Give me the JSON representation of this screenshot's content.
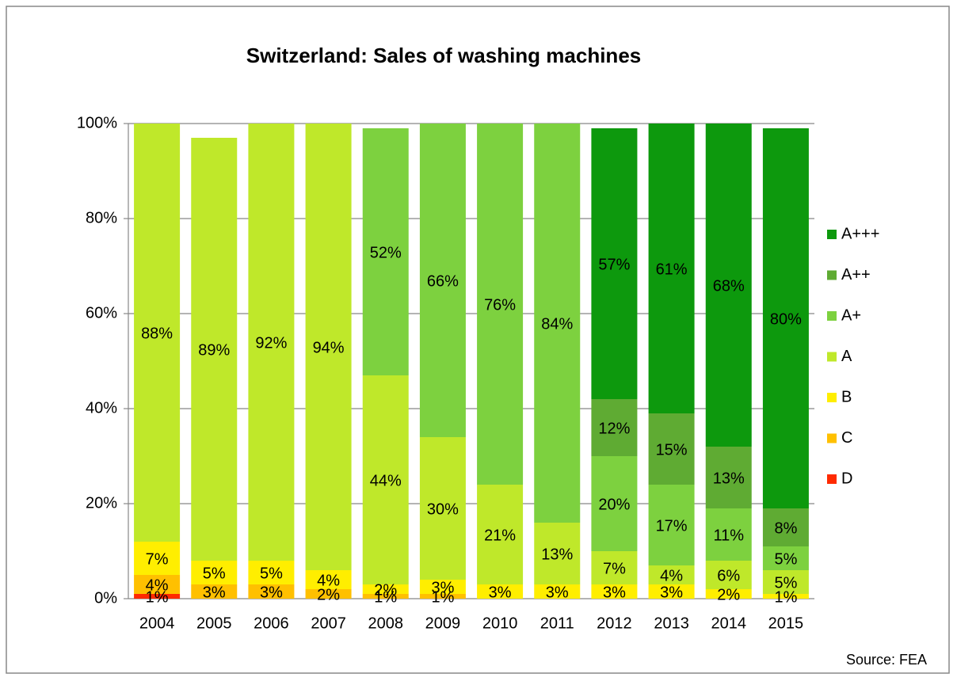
{
  "chart_data": {
    "type": "stacked_bar",
    "title": "Switzerland: Sales of washing machines",
    "source": "Source: FEA",
    "categories": [
      "2004",
      "2005",
      "2006",
      "2007",
      "2008",
      "2009",
      "2010",
      "2011",
      "2012",
      "2013",
      "2014",
      "2015"
    ],
    "ylim": [
      0,
      100
    ],
    "yticks": [
      {
        "value": 0,
        "label": "0%"
      },
      {
        "value": 20,
        "label": "20%"
      },
      {
        "value": 40,
        "label": "40%"
      },
      {
        "value": 60,
        "label": "60%"
      },
      {
        "value": 80,
        "label": "80%"
      },
      {
        "value": 100,
        "label": "100%"
      }
    ],
    "grid": true,
    "legend": "right",
    "series": [
      {
        "name": "D",
        "color": "#ff2a00",
        "values": [
          1,
          null,
          null,
          null,
          null,
          null,
          null,
          null,
          null,
          null,
          null,
          null
        ],
        "value_labels": [
          "1%",
          null,
          null,
          null,
          null,
          null,
          null,
          null,
          null,
          null,
          null,
          null
        ]
      },
      {
        "name": "C",
        "color": "#ffc000",
        "values": [
          4,
          3,
          3,
          2,
          1,
          1,
          null,
          null,
          null,
          null,
          null,
          null
        ],
        "value_labels": [
          "4%",
          "3%",
          "3%",
          "2%",
          "1%",
          "1%",
          null,
          null,
          null,
          null,
          null,
          null
        ]
      },
      {
        "name": "B",
        "color": "#ffee00",
        "values": [
          7,
          5,
          5,
          4,
          2,
          3,
          3,
          3,
          3,
          3,
          2,
          1
        ],
        "value_labels": [
          "7%",
          "5%",
          "5%",
          "4%",
          "2%",
          "3%",
          "3%",
          "3%",
          "3%",
          "3%",
          "2%",
          "1%"
        ]
      },
      {
        "name": "A",
        "color": "#bfe82a",
        "values": [
          88,
          89,
          92,
          94,
          44,
          30,
          21,
          13,
          7,
          4,
          6,
          5
        ],
        "value_labels": [
          "88%",
          "89%",
          "92%",
          "94%",
          "44%",
          "30%",
          "21%",
          "13%",
          "7%",
          "4%",
          "6%",
          "5%"
        ]
      },
      {
        "name": "A+",
        "color": "#7dd13f",
        "values": [
          null,
          null,
          null,
          null,
          52,
          66,
          76,
          84,
          20,
          17,
          11,
          5
        ],
        "value_labels": [
          null,
          null,
          null,
          null,
          "52%",
          "66%",
          "76%",
          "84%",
          "20%",
          "17%",
          "11%",
          "5%"
        ]
      },
      {
        "name": "A++",
        "color": "#5fab33",
        "values": [
          null,
          null,
          null,
          null,
          null,
          null,
          null,
          null,
          12,
          15,
          13,
          8
        ],
        "value_labels": [
          null,
          null,
          null,
          null,
          null,
          null,
          null,
          null,
          "12%",
          "15%",
          "13%",
          "8%"
        ]
      },
      {
        "name": "A+++",
        "color": "#0d990d",
        "values": [
          null,
          null,
          null,
          null,
          null,
          null,
          null,
          null,
          57,
          61,
          68,
          80
        ],
        "value_labels": [
          null,
          null,
          null,
          null,
          null,
          null,
          null,
          null,
          "57%",
          "61%",
          "68%",
          "80%"
        ]
      }
    ]
  }
}
